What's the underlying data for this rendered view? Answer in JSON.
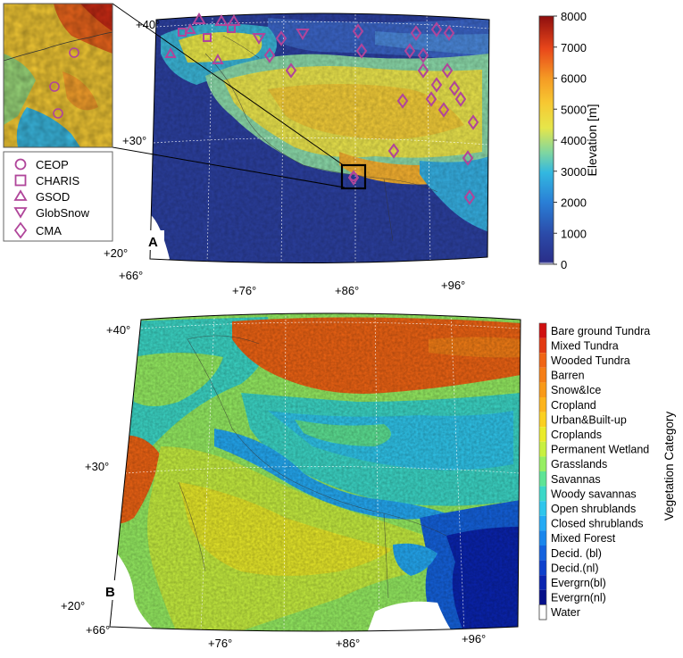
{
  "panel_a": {
    "label": "A",
    "lat_ticks": [
      "+40°",
      "+30°",
      "+20°"
    ],
    "lon_ticks": [
      "+66°",
      "+76°",
      "+86°",
      "+96°"
    ],
    "colorbar": {
      "title": "Elevation [m]",
      "ticks": [
        "8000",
        "7000",
        "6000",
        "5000",
        "4000",
        "3000",
        "2000",
        "1000",
        "0"
      ],
      "min": 0,
      "max": 8000
    },
    "legend": [
      {
        "label": "CEOP",
        "marker": "circle"
      },
      {
        "label": "CHARIS",
        "marker": "square"
      },
      {
        "label": "GSOD",
        "marker": "triangle-up"
      },
      {
        "label": "GlobSnow",
        "marker": "triangle-down"
      },
      {
        "label": "CMA",
        "marker": "diamond"
      }
    ],
    "marker_color": "#b0459a"
  },
  "panel_b": {
    "label": "B",
    "lat_ticks": [
      "+40°",
      "+30°",
      "+20°"
    ],
    "lon_ticks": [
      "+66°",
      "+76°",
      "+86°",
      "+96°"
    ],
    "colorbar": {
      "title": "Vegetation Category",
      "categories": [
        {
          "label": "Bare ground Tundra",
          "color": "#d01010"
        },
        {
          "label": "Mixed Tundra",
          "color": "#e23a12"
        },
        {
          "label": "Wooded Tundra",
          "color": "#f06414"
        },
        {
          "label": "Barren",
          "color": "#f57e16"
        },
        {
          "label": "Snow&Ice",
          "color": "#f99a18"
        },
        {
          "label": "Cropland",
          "color": "#fcb41c"
        },
        {
          "label": "Urban&Built-up",
          "color": "#fbd020"
        },
        {
          "label": "Croplands",
          "color": "#eaeb2a"
        },
        {
          "label": "Permanent Wetland",
          "color": "#c8f040"
        },
        {
          "label": "Grasslands",
          "color": "#96ee62"
        },
        {
          "label": "Savannas",
          "color": "#5ee495"
        },
        {
          "label": "Woody savannas",
          "color": "#3cd8c8"
        },
        {
          "label": "Open shrublands",
          "color": "#2fc6ec"
        },
        {
          "label": "Closed shrublands",
          "color": "#24aaf4"
        },
        {
          "label": "Mixed Forest",
          "color": "#1a86ec"
        },
        {
          "label": "Decid. (bl)",
          "color": "#1462de"
        },
        {
          "label": "Decid.(nl)",
          "color": "#0e40cc"
        },
        {
          "label": "Evergrn(bl)",
          "color": "#0a24b0"
        },
        {
          "label": "Evergrn(nl)",
          "color": "#06108a"
        },
        {
          "label": "Water",
          "color": "#ffffff"
        }
      ]
    }
  }
}
